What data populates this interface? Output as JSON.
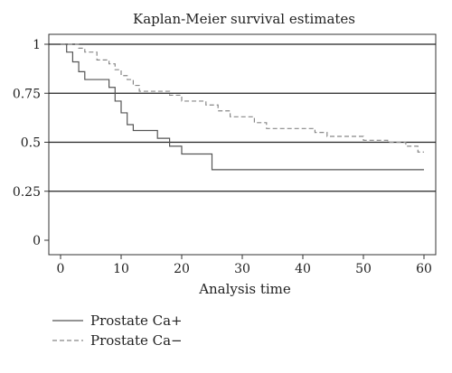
{
  "chart_data": {
    "type": "line",
    "title": "Kaplan-Meier survival estimates",
    "xlabel": "Analysis time",
    "ylabel": "",
    "xlim": [
      0,
      60
    ],
    "ylim": [
      0,
      1
    ],
    "xticks": [
      0,
      10,
      20,
      30,
      40,
      50,
      60
    ],
    "yticks": [
      0,
      0.25,
      0.5,
      0.75,
      1
    ],
    "ytick_labels": [
      "0",
      "0.25",
      "0.5",
      "0.75",
      "1"
    ],
    "grid": "horizontal",
    "legend_position": "bottom-left",
    "series": [
      {
        "name": "Prostate Ca+",
        "style": "solid",
        "color": "#555555",
        "step": true,
        "x": [
          0,
          1,
          2,
          3,
          4,
          8,
          9,
          10,
          11,
          12,
          16,
          18,
          20,
          25,
          60
        ],
        "y": [
          1,
          0.96,
          0.91,
          0.86,
          0.82,
          0.78,
          0.71,
          0.65,
          0.59,
          0.56,
          0.52,
          0.48,
          0.44,
          0.36,
          0.36
        ]
      },
      {
        "name": "Prostate Ca−",
        "style": "dashed",
        "color": "#888888",
        "step": true,
        "x": [
          0,
          3,
          4,
          6,
          8,
          9,
          10,
          11,
          12,
          13,
          17,
          18,
          20,
          24,
          26,
          28,
          32,
          34,
          42,
          44,
          50,
          54,
          57,
          59,
          60
        ],
        "y": [
          1,
          0.98,
          0.96,
          0.92,
          0.9,
          0.87,
          0.84,
          0.82,
          0.79,
          0.76,
          0.76,
          0.74,
          0.71,
          0.69,
          0.66,
          0.63,
          0.6,
          0.57,
          0.55,
          0.53,
          0.51,
          0.5,
          0.48,
          0.45,
          0.45
        ]
      }
    ]
  }
}
